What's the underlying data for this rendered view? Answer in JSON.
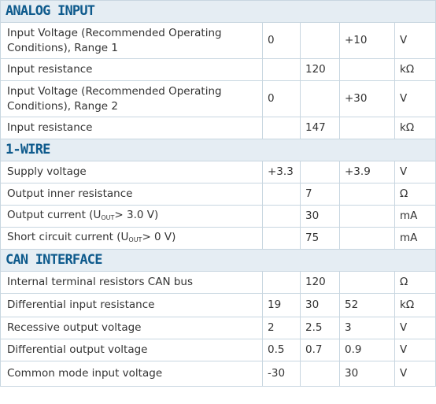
{
  "sections": [
    {
      "title": "ANALOG INPUT",
      "rows": [
        {
          "name": "Input Voltage (Recommended Operating Conditions), Range 1",
          "min": "0",
          "typ": "",
          "max": "+10",
          "unit": "V"
        },
        {
          "name": "Input resistance",
          "min": "",
          "typ": "120",
          "max": "",
          "unit": "kΩ"
        },
        {
          "name": "Input Voltage (Recommended Operating Conditions), Range 2",
          "min": "0",
          "typ": "",
          "max": "+30",
          "unit": "V"
        },
        {
          "name": "Input resistance",
          "min": "",
          "typ": "147",
          "max": "",
          "unit": "kΩ"
        }
      ]
    },
    {
      "title": "1-WIRE",
      "rows": [
        {
          "name": "Supply voltage",
          "min": "+3.3",
          "typ": "",
          "max": "+3.9",
          "unit": "V"
        },
        {
          "name": "Output inner resistance",
          "min": "",
          "typ": "7",
          "max": "",
          "unit": "Ω"
        },
        {
          "name_pre": "Output current (U",
          "name_sub": "OUT",
          "name_post": "> 3.0 V)",
          "min": "",
          "typ": "30",
          "max": "",
          "unit": "mA"
        },
        {
          "name_pre": "Short circuit current (U",
          "name_sub": "OUT",
          "name_post": "> 0 V)",
          "min": "",
          "typ": "75",
          "max": "",
          "unit": "mA"
        }
      ]
    },
    {
      "title": "CAN INTERFACE",
      "rows": [
        {
          "name": "Internal terminal resistors CAN bus",
          "min": "",
          "typ": "120",
          "max": "",
          "unit": "Ω"
        },
        {
          "name": "Differential input resistance",
          "min": "19",
          "typ": "30",
          "max": "52",
          "unit": "kΩ"
        },
        {
          "name": "Recessive output voltage",
          "min": "2",
          "typ": "2.5",
          "max": "3",
          "unit": "V"
        },
        {
          "name": "Differential output voltage",
          "min": "0.5",
          "typ": "0.7",
          "max": "0.9",
          "unit": "V"
        },
        {
          "name": "Common mode input voltage",
          "min": "-30",
          "typ": "",
          "max": "30",
          "unit": "V"
        }
      ]
    }
  ]
}
